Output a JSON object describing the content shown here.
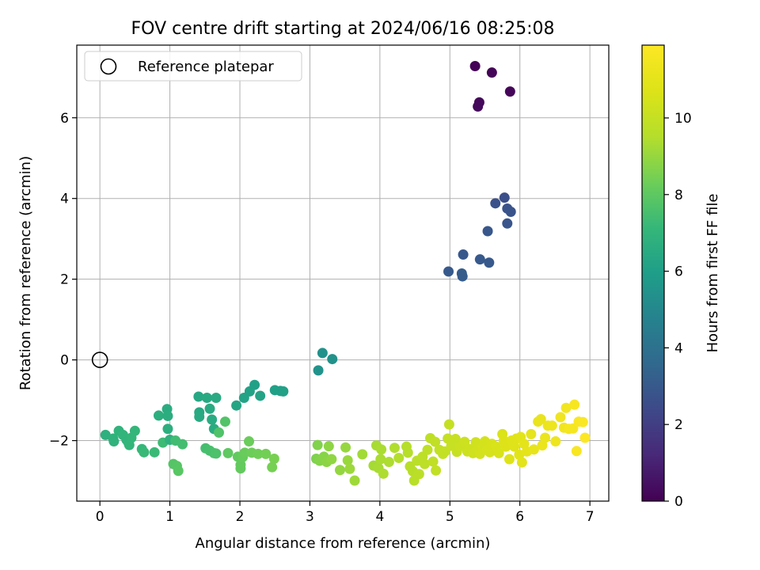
{
  "chart_data": {
    "type": "scatter",
    "title": "FOV centre drift starting at 2024/06/16 08:25:08",
    "xlabel": "Angular distance from reference (arcmin)",
    "ylabel": "Rotation from reference (arcmin)",
    "xlim": [
      -0.33,
      7.27
    ],
    "ylim": [
      -3.5,
      7.8
    ],
    "xticks": [
      0,
      1,
      2,
      3,
      4,
      5,
      6,
      7
    ],
    "yticks": [
      -2,
      0,
      2,
      4,
      6
    ],
    "grid": true,
    "legend": {
      "placement": "upper-left",
      "entries": [
        "Reference platepar"
      ]
    },
    "reference_point": {
      "x": 0,
      "y": 0
    },
    "colorbar": {
      "label": "Hours from first FF file",
      "range": [
        0,
        11.9
      ],
      "ticks": [
        0,
        2,
        4,
        6,
        8,
        10
      ],
      "colormap": "viridis"
    },
    "points": [
      {
        "x": 5.36,
        "y": 7.28,
        "t": 0.05
      },
      {
        "x": 5.6,
        "y": 7.12,
        "t": 0.1
      },
      {
        "x": 5.86,
        "y": 6.65,
        "t": 0.15
      },
      {
        "x": 5.42,
        "y": 6.38,
        "t": 0.2
      },
      {
        "x": 5.4,
        "y": 6.28,
        "t": 0.25
      },
      {
        "x": 5.78,
        "y": 4.02,
        "t": 2.6
      },
      {
        "x": 5.65,
        "y": 3.88,
        "t": 2.7
      },
      {
        "x": 5.82,
        "y": 3.75,
        "t": 2.75
      },
      {
        "x": 5.87,
        "y": 3.67,
        "t": 2.8
      },
      {
        "x": 5.82,
        "y": 3.38,
        "t": 2.85
      },
      {
        "x": 5.54,
        "y": 3.19,
        "t": 2.9
      },
      {
        "x": 5.19,
        "y": 2.61,
        "t": 2.95
      },
      {
        "x": 5.43,
        "y": 2.49,
        "t": 3.0
      },
      {
        "x": 5.56,
        "y": 2.41,
        "t": 3.0
      },
      {
        "x": 4.98,
        "y": 2.19,
        "t": 3.05
      },
      {
        "x": 5.17,
        "y": 2.14,
        "t": 3.1
      },
      {
        "x": 5.18,
        "y": 2.07,
        "t": 3.1
      },
      {
        "x": 3.18,
        "y": 0.17,
        "t": 5.4
      },
      {
        "x": 3.32,
        "y": 0.02,
        "t": 5.45
      },
      {
        "x": 3.12,
        "y": -0.26,
        "t": 5.5
      },
      {
        "x": 0.08,
        "y": -1.86,
        "t": 6.8
      },
      {
        "x": 0.19,
        "y": -1.95,
        "t": 6.9
      },
      {
        "x": 0.2,
        "y": -2.02,
        "t": 6.9
      },
      {
        "x": 0.27,
        "y": -1.76,
        "t": 6.95
      },
      {
        "x": 0.33,
        "y": -1.86,
        "t": 7.0
      },
      {
        "x": 0.38,
        "y": -1.98,
        "t": 7.0
      },
      {
        "x": 0.41,
        "y": -2.06,
        "t": 7.05
      },
      {
        "x": 0.42,
        "y": -2.11,
        "t": 7.05
      },
      {
        "x": 0.45,
        "y": -1.93,
        "t": 7.1
      },
      {
        "x": 0.5,
        "y": -1.76,
        "t": 7.1
      },
      {
        "x": 0.6,
        "y": -2.21,
        "t": 7.15
      },
      {
        "x": 0.63,
        "y": -2.29,
        "t": 7.2
      },
      {
        "x": 0.78,
        "y": -2.29,
        "t": 7.25
      },
      {
        "x": 0.84,
        "y": -1.38,
        "t": 6.7
      },
      {
        "x": 0.9,
        "y": -2.05,
        "t": 7.3
      },
      {
        "x": 0.96,
        "y": -1.22,
        "t": 6.6
      },
      {
        "x": 0.97,
        "y": -1.39,
        "t": 6.65
      },
      {
        "x": 0.97,
        "y": -1.71,
        "t": 6.7
      },
      {
        "x": 1.0,
        "y": -1.98,
        "t": 6.8
      },
      {
        "x": 1.05,
        "y": -2.58,
        "t": 7.8
      },
      {
        "x": 1.1,
        "y": -2.63,
        "t": 7.85
      },
      {
        "x": 1.12,
        "y": -2.75,
        "t": 7.9
      },
      {
        "x": 1.08,
        "y": -2.0,
        "t": 7.4
      },
      {
        "x": 1.18,
        "y": -2.09,
        "t": 7.45
      },
      {
        "x": 1.41,
        "y": -0.91,
        "t": 6.4
      },
      {
        "x": 1.42,
        "y": -1.3,
        "t": 6.45
      },
      {
        "x": 1.42,
        "y": -1.41,
        "t": 6.5
      },
      {
        "x": 1.53,
        "y": -0.94,
        "t": 6.45
      },
      {
        "x": 1.57,
        "y": -1.21,
        "t": 6.5
      },
      {
        "x": 1.6,
        "y": -1.48,
        "t": 6.55
      },
      {
        "x": 1.63,
        "y": -1.71,
        "t": 6.6
      },
      {
        "x": 1.66,
        "y": -0.94,
        "t": 6.5
      },
      {
        "x": 1.51,
        "y": -2.19,
        "t": 7.5
      },
      {
        "x": 1.57,
        "y": -2.25,
        "t": 7.55
      },
      {
        "x": 1.63,
        "y": -2.31,
        "t": 7.6
      },
      {
        "x": 1.66,
        "y": -2.32,
        "t": 7.65
      },
      {
        "x": 1.7,
        "y": -1.8,
        "t": 7.7
      },
      {
        "x": 1.79,
        "y": -1.53,
        "t": 7.75
      },
      {
        "x": 1.83,
        "y": -2.31,
        "t": 8.0
      },
      {
        "x": 1.95,
        "y": -1.13,
        "t": 6.3
      },
      {
        "x": 1.97,
        "y": -2.4,
        "t": 8.05
      },
      {
        "x": 2.01,
        "y": -2.6,
        "t": 8.1
      },
      {
        "x": 2.01,
        "y": -2.69,
        "t": 8.1
      },
      {
        "x": 2.04,
        "y": -2.41,
        "t": 8.15
      },
      {
        "x": 2.06,
        "y": -0.94,
        "t": 6.2
      },
      {
        "x": 2.07,
        "y": -2.3,
        "t": 8.2
      },
      {
        "x": 2.14,
        "y": -0.78,
        "t": 6.15
      },
      {
        "x": 2.13,
        "y": -2.02,
        "t": 8.25
      },
      {
        "x": 2.17,
        "y": -2.3,
        "t": 8.3
      },
      {
        "x": 2.21,
        "y": -0.62,
        "t": 6.1
      },
      {
        "x": 2.26,
        "y": -2.33,
        "t": 8.35
      },
      {
        "x": 2.29,
        "y": -0.89,
        "t": 6.2
      },
      {
        "x": 2.37,
        "y": -2.33,
        "t": 8.4
      },
      {
        "x": 2.46,
        "y": -2.66,
        "t": 8.45
      },
      {
        "x": 2.49,
        "y": -2.45,
        "t": 8.5
      },
      {
        "x": 2.5,
        "y": -0.75,
        "t": 6.05
      },
      {
        "x": 2.58,
        "y": -0.77,
        "t": 6.05
      },
      {
        "x": 2.62,
        "y": -0.78,
        "t": 6.1
      },
      {
        "x": 3.09,
        "y": -2.45,
        "t": 8.6
      },
      {
        "x": 3.11,
        "y": -2.11,
        "t": 8.65
      },
      {
        "x": 3.14,
        "y": -2.5,
        "t": 8.7
      },
      {
        "x": 3.2,
        "y": -2.4,
        "t": 8.75
      },
      {
        "x": 3.24,
        "y": -2.53,
        "t": 8.8
      },
      {
        "x": 3.27,
        "y": -2.14,
        "t": 8.85
      },
      {
        "x": 3.31,
        "y": -2.46,
        "t": 8.9
      },
      {
        "x": 3.43,
        "y": -2.73,
        "t": 8.95
      },
      {
        "x": 3.51,
        "y": -2.17,
        "t": 9.0
      },
      {
        "x": 3.54,
        "y": -2.49,
        "t": 9.05
      },
      {
        "x": 3.57,
        "y": -2.7,
        "t": 9.1
      },
      {
        "x": 3.64,
        "y": -2.99,
        "t": 9.15
      },
      {
        "x": 3.75,
        "y": -2.34,
        "t": 9.2
      },
      {
        "x": 3.91,
        "y": -2.62,
        "t": 9.25
      },
      {
        "x": 3.95,
        "y": -2.12,
        "t": 9.3
      },
      {
        "x": 3.98,
        "y": -2.68,
        "t": 9.3
      },
      {
        "x": 4.01,
        "y": -2.46,
        "t": 9.35
      },
      {
        "x": 4.02,
        "y": -2.22,
        "t": 9.35
      },
      {
        "x": 4.05,
        "y": -2.82,
        "t": 9.4
      },
      {
        "x": 4.13,
        "y": -2.53,
        "t": 9.4
      },
      {
        "x": 4.21,
        "y": -2.18,
        "t": 9.45
      },
      {
        "x": 4.27,
        "y": -2.43,
        "t": 9.5
      },
      {
        "x": 4.38,
        "y": -2.15,
        "t": 9.55
      },
      {
        "x": 4.4,
        "y": -2.3,
        "t": 9.55
      },
      {
        "x": 4.43,
        "y": -2.64,
        "t": 9.6
      },
      {
        "x": 4.47,
        "y": -2.76,
        "t": 9.6
      },
      {
        "x": 4.49,
        "y": -2.99,
        "t": 9.65
      },
      {
        "x": 4.53,
        "y": -2.5,
        "t": 9.7
      },
      {
        "x": 4.56,
        "y": -2.83,
        "t": 9.7
      },
      {
        "x": 4.61,
        "y": -2.4,
        "t": 9.75
      },
      {
        "x": 4.64,
        "y": -2.58,
        "t": 9.75
      },
      {
        "x": 4.68,
        "y": -2.23,
        "t": 9.8
      },
      {
        "x": 4.72,
        "y": -1.94,
        "t": 9.8
      },
      {
        "x": 4.76,
        "y": -2.52,
        "t": 9.85
      },
      {
        "x": 4.79,
        "y": -2.03,
        "t": 9.85
      },
      {
        "x": 4.8,
        "y": -2.74,
        "t": 9.9
      },
      {
        "x": 4.85,
        "y": -2.23,
        "t": 9.9
      },
      {
        "x": 4.9,
        "y": -2.33,
        "t": 9.95
      },
      {
        "x": 4.93,
        "y": -2.27,
        "t": 9.95
      },
      {
        "x": 4.97,
        "y": -1.95,
        "t": 10.0
      },
      {
        "x": 4.99,
        "y": -1.6,
        "t": 10.0
      },
      {
        "x": 5.02,
        "y": -2.13,
        "t": 10.05
      },
      {
        "x": 5.08,
        "y": -1.96,
        "t": 10.1
      },
      {
        "x": 5.1,
        "y": -2.28,
        "t": 10.1
      },
      {
        "x": 5.15,
        "y": -2.14,
        "t": 10.15
      },
      {
        "x": 5.21,
        "y": -2.03,
        "t": 10.2
      },
      {
        "x": 5.25,
        "y": -2.27,
        "t": 10.2
      },
      {
        "x": 5.28,
        "y": -2.21,
        "t": 10.25
      },
      {
        "x": 5.33,
        "y": -2.31,
        "t": 10.3
      },
      {
        "x": 5.37,
        "y": -2.04,
        "t": 10.3
      },
      {
        "x": 5.4,
        "y": -2.23,
        "t": 10.35
      },
      {
        "x": 5.43,
        "y": -2.33,
        "t": 10.4
      },
      {
        "x": 5.47,
        "y": -2.14,
        "t": 10.4
      },
      {
        "x": 5.5,
        "y": -2.02,
        "t": 10.45
      },
      {
        "x": 5.53,
        "y": -2.23,
        "t": 10.5
      },
      {
        "x": 5.57,
        "y": -2.29,
        "t": 10.5
      },
      {
        "x": 5.6,
        "y": -2.08,
        "t": 10.55
      },
      {
        "x": 5.66,
        "y": -2.15,
        "t": 10.6
      },
      {
        "x": 5.7,
        "y": -2.31,
        "t": 10.6
      },
      {
        "x": 5.75,
        "y": -1.84,
        "t": 10.65
      },
      {
        "x": 5.77,
        "y": -2.0,
        "t": 10.7
      },
      {
        "x": 5.8,
        "y": -2.15,
        "t": 10.7
      },
      {
        "x": 5.85,
        "y": -2.46,
        "t": 10.75
      },
      {
        "x": 5.88,
        "y": -2.0,
        "t": 10.8
      },
      {
        "x": 5.92,
        "y": -2.15,
        "t": 10.8
      },
      {
        "x": 5.95,
        "y": -1.95,
        "t": 10.85
      },
      {
        "x": 5.99,
        "y": -2.35,
        "t": 10.9
      },
      {
        "x": 6.01,
        "y": -1.91,
        "t": 10.9
      },
      {
        "x": 6.03,
        "y": -2.54,
        "t": 10.95
      },
      {
        "x": 6.06,
        "y": -2.08,
        "t": 11.0
      },
      {
        "x": 6.1,
        "y": -2.27,
        "t": 11.0
      },
      {
        "x": 6.16,
        "y": -1.84,
        "t": 11.05
      },
      {
        "x": 6.2,
        "y": -2.22,
        "t": 11.1
      },
      {
        "x": 6.26,
        "y": -1.53,
        "t": 11.15
      },
      {
        "x": 6.3,
        "y": -1.47,
        "t": 11.15
      },
      {
        "x": 6.32,
        "y": -2.12,
        "t": 11.2
      },
      {
        "x": 6.36,
        "y": -1.93,
        "t": 11.2
      },
      {
        "x": 6.4,
        "y": -1.63,
        "t": 11.25
      },
      {
        "x": 6.46,
        "y": -1.63,
        "t": 11.3
      },
      {
        "x": 6.51,
        "y": -2.02,
        "t": 11.35
      },
      {
        "x": 6.58,
        "y": -1.42,
        "t": 11.4
      },
      {
        "x": 6.63,
        "y": -1.68,
        "t": 11.45
      },
      {
        "x": 6.66,
        "y": -1.19,
        "t": 11.5
      },
      {
        "x": 6.7,
        "y": -1.71,
        "t": 11.55
      },
      {
        "x": 6.76,
        "y": -1.7,
        "t": 11.6
      },
      {
        "x": 6.78,
        "y": -1.11,
        "t": 11.65
      },
      {
        "x": 6.81,
        "y": -2.26,
        "t": 11.7
      },
      {
        "x": 6.84,
        "y": -1.53,
        "t": 11.75
      },
      {
        "x": 6.9,
        "y": -1.54,
        "t": 11.8
      },
      {
        "x": 6.93,
        "y": -1.93,
        "t": 11.85
      }
    ]
  }
}
